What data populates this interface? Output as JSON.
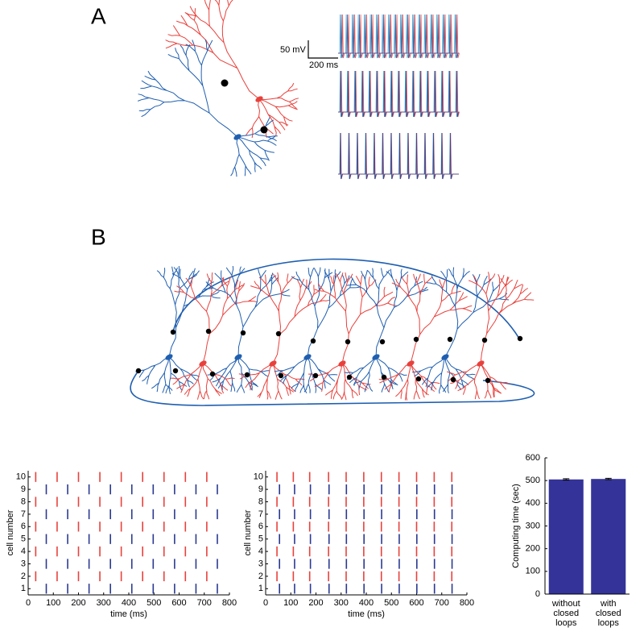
{
  "panel_labels": [
    "A",
    "B"
  ],
  "scale_bar": {
    "voltage": "50 mV",
    "time": "200 ms"
  },
  "chart_data": [
    {
      "type": "raster",
      "xlabel": "time (ms)",
      "ylabel": "cell number",
      "xlim": [
        0,
        800
      ],
      "xticks": [
        0,
        100,
        200,
        300,
        400,
        500,
        600,
        700,
        800
      ],
      "ylim": [
        0.5,
        10.5
      ],
      "yticks": [
        1,
        2,
        3,
        4,
        5,
        6,
        7,
        8,
        9,
        10
      ],
      "cells": [
        {
          "color": "#2b3990",
          "spikes": [
            72,
            157,
            242,
            327,
            412,
            497,
            582,
            667,
            752
          ]
        },
        {
          "color": "#e8413c",
          "spikes": [
            30,
            115,
            200,
            285,
            370,
            455,
            540,
            625,
            710
          ]
        },
        {
          "color": "#2b3990",
          "spikes": [
            72,
            157,
            242,
            327,
            412,
            497,
            582,
            667,
            752
          ]
        },
        {
          "color": "#e8413c",
          "spikes": [
            30,
            115,
            200,
            285,
            370,
            455,
            540,
            625,
            710
          ]
        },
        {
          "color": "#2b3990",
          "spikes": [
            72,
            157,
            242,
            327,
            412,
            497,
            582,
            667,
            752
          ]
        },
        {
          "color": "#e8413c",
          "spikes": [
            30,
            115,
            200,
            285,
            370,
            455,
            540,
            625,
            710
          ]
        },
        {
          "color": "#2b3990",
          "spikes": [
            72,
            157,
            242,
            327,
            412,
            497,
            582,
            667,
            752
          ]
        },
        {
          "color": "#e8413c",
          "spikes": [
            30,
            115,
            200,
            285,
            370,
            455,
            540,
            625,
            710
          ]
        },
        {
          "color": "#2b3990",
          "spikes": [
            72,
            157,
            242,
            327,
            412,
            497,
            582,
            667,
            752
          ]
        },
        {
          "color": "#e8413c",
          "spikes": [
            30,
            115,
            200,
            285,
            370,
            455,
            540,
            625,
            710
          ]
        }
      ]
    },
    {
      "type": "raster",
      "xlabel": "time (ms)",
      "ylabel": "cell number",
      "xlim": [
        0,
        800
      ],
      "xticks": [
        0,
        100,
        200,
        300,
        400,
        500,
        600,
        700,
        800
      ],
      "ylim": [
        0.5,
        10.5
      ],
      "yticks": [
        1,
        2,
        3,
        4,
        5,
        6,
        7,
        8,
        9,
        10
      ],
      "cells": [
        {
          "color": "#2b3990",
          "spikes": [
            55,
            115,
            178,
            252,
            321,
            391,
            461,
            531,
            601,
            671,
            741
          ]
        },
        {
          "color": "#e8413c",
          "spikes": [
            45,
            110,
            175,
            250,
            320,
            390,
            460,
            530,
            600,
            670,
            740
          ]
        },
        {
          "color": "#2b3990",
          "spikes": [
            55,
            115,
            178,
            252,
            321,
            391,
            461,
            531,
            601,
            671,
            741
          ]
        },
        {
          "color": "#e8413c",
          "spikes": [
            45,
            110,
            175,
            250,
            320,
            390,
            460,
            530,
            600,
            670,
            740
          ]
        },
        {
          "color": "#2b3990",
          "spikes": [
            55,
            115,
            178,
            252,
            321,
            391,
            461,
            531,
            601,
            671,
            741
          ]
        },
        {
          "color": "#e8413c",
          "spikes": [
            45,
            110,
            175,
            250,
            320,
            390,
            460,
            530,
            600,
            670,
            740
          ]
        },
        {
          "color": "#2b3990",
          "spikes": [
            55,
            115,
            178,
            252,
            321,
            391,
            461,
            531,
            601,
            671,
            741
          ]
        },
        {
          "color": "#e8413c",
          "spikes": [
            45,
            110,
            175,
            250,
            320,
            390,
            460,
            530,
            600,
            670,
            740
          ]
        },
        {
          "color": "#2b3990",
          "spikes": [
            55,
            115,
            178,
            252,
            321,
            391,
            461,
            531,
            601,
            671,
            741
          ]
        },
        {
          "color": "#e8413c",
          "spikes": [
            45,
            110,
            175,
            250,
            320,
            390,
            460,
            530,
            600,
            670,
            740
          ]
        }
      ]
    },
    {
      "type": "bar",
      "ylabel": "Computing time (sec)",
      "categories": [
        [
          "without",
          "closed",
          "loops"
        ],
        [
          "with",
          "closed",
          "loops"
        ]
      ],
      "values": [
        505,
        507
      ],
      "errors": [
        3,
        3
      ],
      "color": "#333399",
      "ylim": [
        0,
        600
      ],
      "yticks": [
        0,
        100,
        200,
        300,
        400,
        500,
        600
      ]
    }
  ]
}
